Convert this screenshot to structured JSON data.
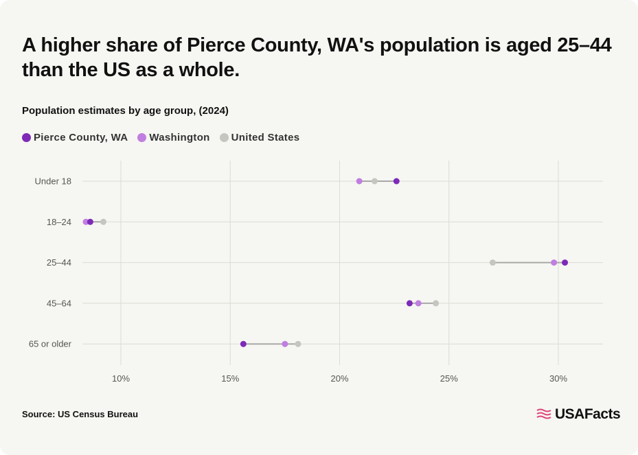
{
  "title": "A higher share of Pierce County, WA's population is aged 25–44 than the US as a whole.",
  "subtitle": "Population estimates by age group, (2024)",
  "source": "Source: US Census Bureau",
  "brand": "USAFacts",
  "colors": {
    "pierce": "#7d2ab8",
    "washington": "#c07ee0",
    "us": "#c6c6c0",
    "grid": "#dcdcd6",
    "connector": "#a8a8a8",
    "background": "#f6f6f2",
    "logo_accent": "#e0457b"
  },
  "legend": [
    {
      "label": "Pierce County, WA",
      "color": "#7d2ab8"
    },
    {
      "label": "Washington",
      "color": "#c07ee0"
    },
    {
      "label": "United States",
      "color": "#c6c6c0"
    }
  ],
  "chart_data": {
    "type": "dot-plot",
    "title": "A higher share of Pierce County, WA's population is aged 25–44 than the US as a whole.",
    "subtitle": "Population estimates by age group, (2024)",
    "categories": [
      "Under 18",
      "18–24",
      "25–44",
      "45–64",
      "65 or older"
    ],
    "series": [
      {
        "name": "Pierce County, WA",
        "values": [
          22.6,
          8.6,
          30.3,
          23.2,
          15.6
        ]
      },
      {
        "name": "Washington",
        "values": [
          20.9,
          8.4,
          29.8,
          23.6,
          17.5
        ]
      },
      {
        "name": "United States",
        "values": [
          21.6,
          9.2,
          27.0,
          24.4,
          18.1
        ]
      }
    ],
    "x_ticks": [
      10,
      15,
      20,
      25,
      30
    ],
    "x_tick_labels": [
      "10%",
      "15%",
      "20%",
      "25%",
      "30%"
    ],
    "xlim": [
      8,
      32
    ],
    "grid": true,
    "legend_position": "top-left"
  }
}
